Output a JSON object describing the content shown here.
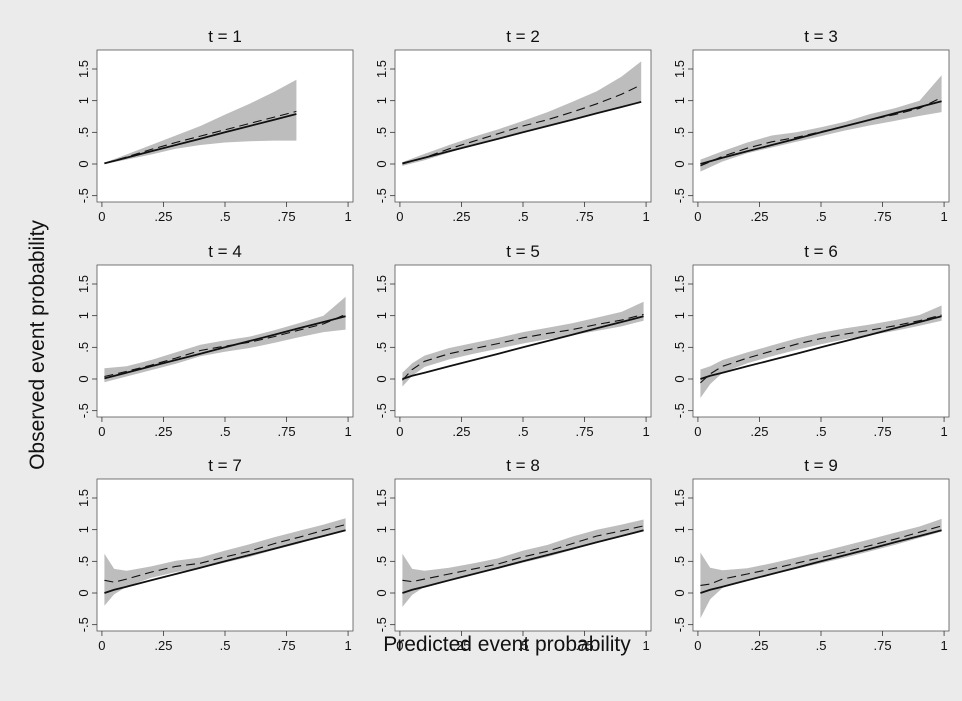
{
  "figure": {
    "xlabel": "Predicted event probability",
    "ylabel": "Observed event probability"
  },
  "chart_data": {
    "type": "line",
    "layout": "3x3 grid of panels",
    "x_ticks": [
      0,
      0.25,
      0.5,
      0.75,
      1
    ],
    "x_tick_labels": [
      "0",
      ".25",
      ".5",
      ".75",
      "1"
    ],
    "y_ticks": [
      -0.5,
      0,
      0.5,
      1,
      1.5
    ],
    "y_tick_labels": [
      "-.5",
      "0",
      ".5",
      "1",
      "1.5"
    ],
    "xlim": [
      -0.02,
      1.02
    ],
    "ylim": [
      -0.6,
      1.8
    ],
    "colors": {
      "band": "#bdbdbd",
      "line": "#111111",
      "panel": "#ffffff",
      "background": "#ebebeb"
    },
    "panels": [
      {
        "title": "t = 1",
        "x": [
          0.01,
          0.1,
          0.2,
          0.3,
          0.4,
          0.5,
          0.6,
          0.7,
          0.79
        ],
        "calibration": [
          0.01,
          0.1,
          0.2,
          0.3,
          0.4,
          0.5,
          0.6,
          0.7,
          0.79
        ],
        "smoothed": [
          0.01,
          0.11,
          0.23,
          0.34,
          0.44,
          0.54,
          0.64,
          0.74,
          0.83
        ],
        "ci_lower": [
          0.0,
          0.07,
          0.15,
          0.24,
          0.3,
          0.34,
          0.36,
          0.37,
          0.37
        ],
        "ci_upper": [
          0.02,
          0.15,
          0.3,
          0.45,
          0.6,
          0.78,
          0.95,
          1.14,
          1.33
        ]
      },
      {
        "title": "t = 2",
        "x": [
          0.01,
          0.1,
          0.2,
          0.3,
          0.4,
          0.5,
          0.6,
          0.7,
          0.8,
          0.9,
          0.98
        ],
        "calibration": [
          0.01,
          0.1,
          0.2,
          0.3,
          0.4,
          0.5,
          0.6,
          0.7,
          0.8,
          0.9,
          0.98
        ],
        "smoothed": [
          0.0,
          0.1,
          0.24,
          0.36,
          0.48,
          0.6,
          0.7,
          0.82,
          0.95,
          1.1,
          1.25
        ],
        "ci_lower": [
          -0.03,
          0.06,
          0.18,
          0.3,
          0.41,
          0.51,
          0.6,
          0.7,
          0.8,
          0.9,
          0.98
        ],
        "ci_upper": [
          0.03,
          0.16,
          0.3,
          0.43,
          0.55,
          0.68,
          0.82,
          0.98,
          1.15,
          1.38,
          1.62
        ]
      },
      {
        "title": "t = 3",
        "x": [
          0.01,
          0.1,
          0.2,
          0.3,
          0.4,
          0.5,
          0.6,
          0.7,
          0.8,
          0.9,
          0.99
        ],
        "calibration": [
          0.0,
          0.1,
          0.2,
          0.3,
          0.4,
          0.5,
          0.6,
          0.7,
          0.8,
          0.9,
          0.99
        ],
        "smoothed": [
          -0.03,
          0.12,
          0.25,
          0.35,
          0.42,
          0.51,
          0.6,
          0.7,
          0.78,
          0.88,
          1.05
        ],
        "ci_lower": [
          -0.12,
          0.04,
          0.17,
          0.26,
          0.35,
          0.44,
          0.53,
          0.61,
          0.68,
          0.76,
          0.82
        ],
        "ci_upper": [
          0.07,
          0.2,
          0.34,
          0.45,
          0.5,
          0.58,
          0.67,
          0.79,
          0.88,
          1.0,
          1.4
        ]
      },
      {
        "title": "t = 4",
        "x": [
          0.01,
          0.1,
          0.2,
          0.3,
          0.4,
          0.5,
          0.6,
          0.7,
          0.8,
          0.9,
          0.99
        ],
        "calibration": [
          0.01,
          0.1,
          0.2,
          0.3,
          0.4,
          0.5,
          0.6,
          0.7,
          0.8,
          0.9,
          0.99
        ],
        "smoothed": [
          0.04,
          0.12,
          0.22,
          0.33,
          0.45,
          0.52,
          0.58,
          0.67,
          0.77,
          0.87,
          1.02
        ],
        "ci_lower": [
          -0.05,
          0.04,
          0.14,
          0.24,
          0.36,
          0.43,
          0.49,
          0.57,
          0.66,
          0.74,
          0.78
        ],
        "ci_upper": [
          0.17,
          0.2,
          0.3,
          0.42,
          0.54,
          0.61,
          0.67,
          0.77,
          0.88,
          1.0,
          1.3
        ]
      },
      {
        "title": "t = 5",
        "x": [
          0.01,
          0.05,
          0.1,
          0.2,
          0.3,
          0.4,
          0.5,
          0.6,
          0.7,
          0.8,
          0.9,
          0.99
        ],
        "calibration": [
          0.0,
          0.05,
          0.1,
          0.2,
          0.3,
          0.4,
          0.5,
          0.6,
          0.7,
          0.8,
          0.9,
          0.99
        ],
        "smoothed": [
          -0.02,
          0.15,
          0.28,
          0.4,
          0.48,
          0.56,
          0.65,
          0.72,
          0.78,
          0.86,
          0.93,
          1.02
        ],
        "ci_lower": [
          -0.12,
          0.05,
          0.19,
          0.31,
          0.4,
          0.48,
          0.56,
          0.63,
          0.69,
          0.76,
          0.83,
          0.92
        ],
        "ci_upper": [
          0.1,
          0.25,
          0.37,
          0.49,
          0.57,
          0.65,
          0.74,
          0.81,
          0.88,
          0.97,
          1.06,
          1.22
        ]
      },
      {
        "title": "t = 6",
        "x": [
          0.01,
          0.05,
          0.1,
          0.2,
          0.3,
          0.4,
          0.5,
          0.6,
          0.7,
          0.8,
          0.9,
          0.99
        ],
        "calibration": [
          0.0,
          0.05,
          0.1,
          0.2,
          0.3,
          0.4,
          0.5,
          0.6,
          0.7,
          0.8,
          0.9,
          0.99
        ],
        "smoothed": [
          -0.06,
          0.08,
          0.2,
          0.33,
          0.44,
          0.55,
          0.64,
          0.71,
          0.77,
          0.84,
          0.92,
          1.01
        ],
        "ci_lower": [
          -0.3,
          -0.08,
          0.1,
          0.25,
          0.36,
          0.46,
          0.55,
          0.63,
          0.69,
          0.76,
          0.84,
          0.92
        ],
        "ci_upper": [
          0.15,
          0.2,
          0.3,
          0.42,
          0.53,
          0.64,
          0.73,
          0.8,
          0.86,
          0.93,
          1.01,
          1.16
        ]
      },
      {
        "title": "t = 7",
        "x": [
          0.01,
          0.05,
          0.1,
          0.2,
          0.3,
          0.4,
          0.5,
          0.6,
          0.7,
          0.8,
          0.9,
          0.99
        ],
        "calibration": [
          0.0,
          0.05,
          0.1,
          0.2,
          0.3,
          0.4,
          0.5,
          0.6,
          0.7,
          0.8,
          0.9,
          0.99
        ],
        "smoothed": [
          0.2,
          0.17,
          0.22,
          0.33,
          0.42,
          0.47,
          0.57,
          0.66,
          0.78,
          0.88,
          0.99,
          1.08
        ],
        "ci_lower": [
          -0.2,
          -0.02,
          0.1,
          0.24,
          0.33,
          0.39,
          0.48,
          0.57,
          0.68,
          0.78,
          0.9,
          0.98
        ],
        "ci_upper": [
          0.62,
          0.38,
          0.35,
          0.42,
          0.51,
          0.56,
          0.67,
          0.77,
          0.88,
          0.98,
          1.08,
          1.18
        ]
      },
      {
        "title": "t = 8",
        "x": [
          0.01,
          0.05,
          0.1,
          0.2,
          0.3,
          0.4,
          0.5,
          0.6,
          0.7,
          0.8,
          0.9,
          0.99
        ],
        "calibration": [
          0.0,
          0.05,
          0.1,
          0.2,
          0.3,
          0.4,
          0.5,
          0.6,
          0.7,
          0.8,
          0.9,
          0.99
        ],
        "smoothed": [
          0.2,
          0.18,
          0.22,
          0.3,
          0.38,
          0.46,
          0.57,
          0.66,
          0.78,
          0.9,
          0.98,
          1.06
        ],
        "ci_lower": [
          -0.22,
          -0.03,
          0.1,
          0.22,
          0.3,
          0.38,
          0.48,
          0.57,
          0.68,
          0.8,
          0.89,
          0.97
        ],
        "ci_upper": [
          0.62,
          0.38,
          0.35,
          0.4,
          0.47,
          0.55,
          0.67,
          0.76,
          0.89,
          1.0,
          1.08,
          1.16
        ]
      },
      {
        "title": "t = 9",
        "x": [
          0.01,
          0.05,
          0.1,
          0.2,
          0.3,
          0.4,
          0.5,
          0.6,
          0.7,
          0.8,
          0.9,
          0.99
        ],
        "calibration": [
          0.0,
          0.05,
          0.1,
          0.2,
          0.3,
          0.4,
          0.5,
          0.6,
          0.7,
          0.8,
          0.9,
          0.99
        ],
        "smoothed": [
          0.12,
          0.14,
          0.22,
          0.3,
          0.38,
          0.47,
          0.56,
          0.65,
          0.75,
          0.85,
          0.96,
          1.06
        ],
        "ci_lower": [
          -0.4,
          -0.1,
          0.08,
          0.22,
          0.3,
          0.38,
          0.47,
          0.56,
          0.66,
          0.76,
          0.87,
          0.97
        ],
        "ci_upper": [
          0.64,
          0.4,
          0.36,
          0.39,
          0.47,
          0.56,
          0.65,
          0.75,
          0.85,
          0.95,
          1.05,
          1.17
        ]
      }
    ]
  }
}
